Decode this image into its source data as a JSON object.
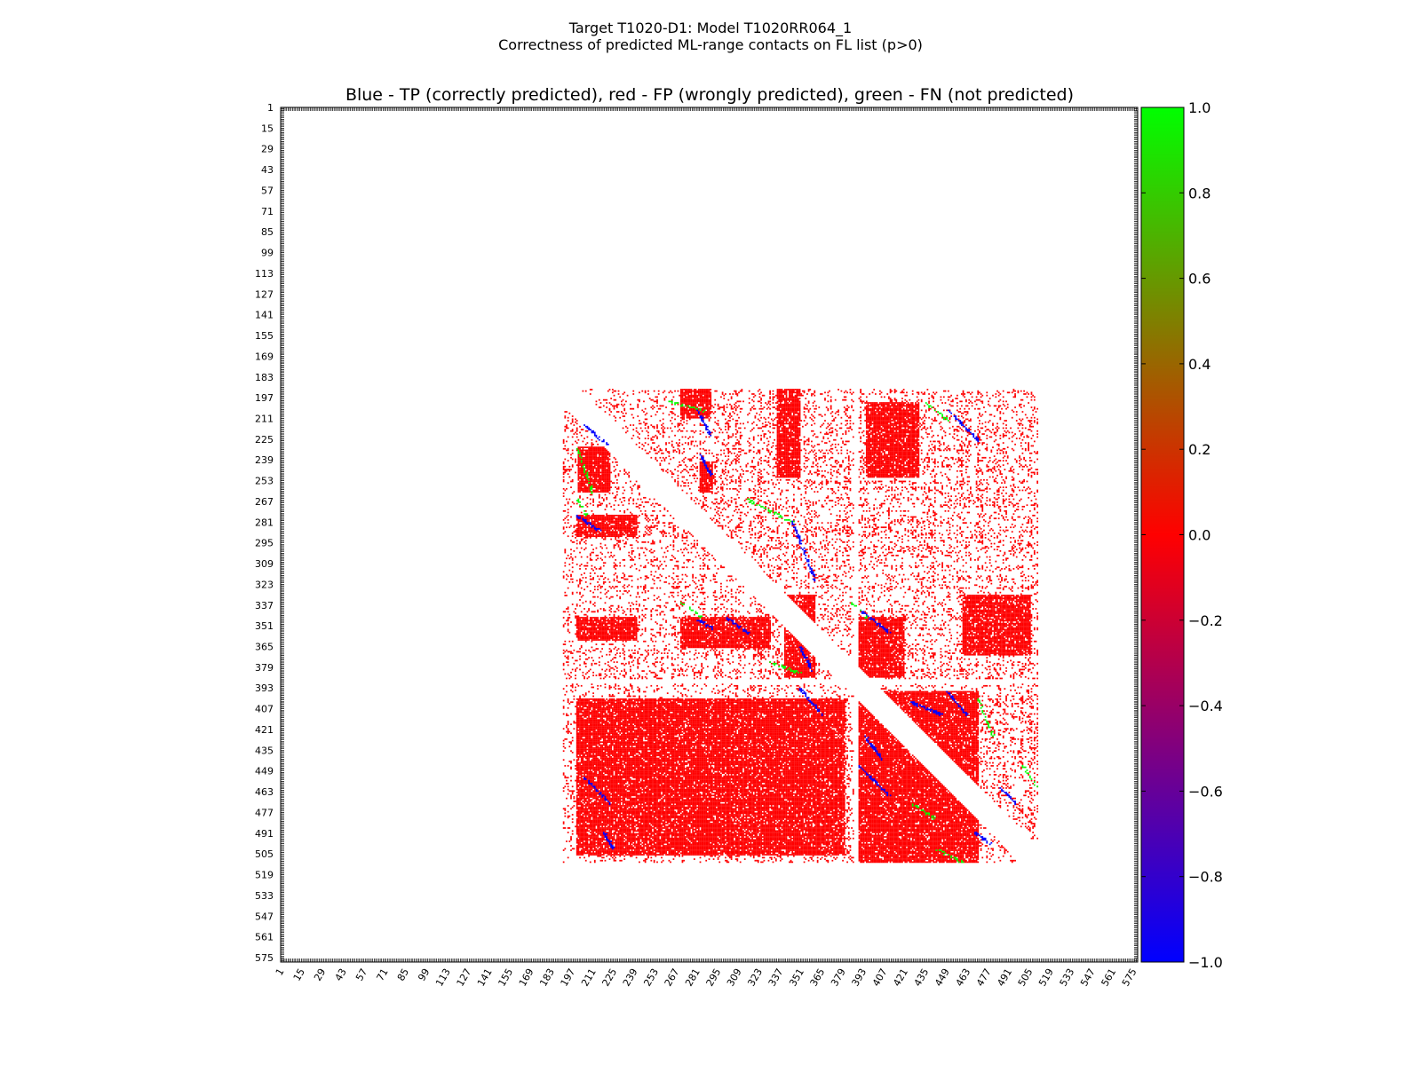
{
  "figure": {
    "suptitle_line1": "Target T1020-D1: Model T1020RR064_1",
    "suptitle_line2": "Correctness of predicted ML-range contacts on FL list (p>0)"
  },
  "chart_data": {
    "type": "heatmap",
    "title": "Blue - TP (correctly predicted), red - FP (wrongly predicted), green - FN (not predicted)",
    "xlabel": "",
    "ylabel": "",
    "x_range": [
      1,
      578
    ],
    "y_range": [
      1,
      578
    ],
    "y_inverted": true,
    "x_tick_labels": [
      "1",
      "15",
      "29",
      "43",
      "57",
      "71",
      "85",
      "99",
      "113",
      "127",
      "141",
      "155",
      "169",
      "183",
      "197",
      "211",
      "225",
      "239",
      "253",
      "267",
      "281",
      "295",
      "309",
      "323",
      "337",
      "351",
      "365",
      "379",
      "393",
      "407",
      "421",
      "435",
      "449",
      "463",
      "477",
      "491",
      "505",
      "519",
      "533",
      "547",
      "561",
      "575"
    ],
    "y_tick_labels": [
      "1",
      "15",
      "29",
      "43",
      "57",
      "71",
      "85",
      "99",
      "113",
      "127",
      "141",
      "155",
      "169",
      "183",
      "197",
      "211",
      "225",
      "239",
      "253",
      "267",
      "281",
      "295",
      "309",
      "323",
      "337",
      "351",
      "365",
      "379",
      "393",
      "407",
      "421",
      "435",
      "449",
      "463",
      "477",
      "491",
      "505",
      "519",
      "533",
      "547",
      "561",
      "575"
    ],
    "colorbar": {
      "range": [
        -1.0,
        1.0
      ],
      "tick_labels": [
        "1.0",
        "0.8",
        "0.6",
        "0.4",
        "0.2",
        "0.0",
        "−0.2",
        "−0.4",
        "−0.6",
        "−0.8",
        "−1.0"
      ],
      "colors": [
        "#0000ff",
        "#ff0000",
        "#00ff00"
      ]
    },
    "category_values": {
      "TP": -1.0,
      "FP": 0.0,
      "FN": 1.0
    },
    "category_colors": {
      "TP": "#0000ff",
      "FP": "#ff0000",
      "FN": "#00ff00"
    },
    "residue_domain": [
      191,
      510
    ],
    "gap_residues": [
      [
        387,
        389
      ]
    ],
    "dense_blocks": [
      {
        "x": [
          270,
          290
        ],
        "y": [
          191,
          210
        ]
      },
      {
        "x": [
          201,
          222
        ],
        "y": [
          230,
          260
        ]
      },
      {
        "x": [
          283,
          291
        ],
        "y": [
          240,
          260
        ]
      },
      {
        "x": [
          335,
          350
        ],
        "y": [
          191,
          250
        ]
      },
      {
        "x": [
          200,
          240
        ],
        "y": [
          276,
          290
        ]
      },
      {
        "x": [
          200,
          240
        ],
        "y": [
          345,
          360
        ]
      },
      {
        "x": [
          270,
          330
        ],
        "y": [
          345,
          365
        ]
      },
      {
        "x": [
          340,
          360
        ],
        "y": [
          330,
          385
        ]
      },
      {
        "x": [
          390,
          420
        ],
        "y": [
          345,
          385
        ]
      },
      {
        "x": [
          395,
          430
        ],
        "y": [
          200,
          250
        ]
      },
      {
        "x": [
          440,
          470
        ],
        "y": [
          400,
          430
        ]
      },
      {
        "x": [
          390,
          470
        ],
        "y": [
          395,
          510
        ]
      },
      {
        "x": [
          200,
          380
        ],
        "y": [
          400,
          505
        ]
      },
      {
        "x": [
          460,
          505
        ],
        "y": [
          330,
          370
        ]
      }
    ],
    "tp_segments": [
      {
        "x": [
          205,
          220
        ],
        "y": [
          215,
          228
        ]
      },
      {
        "x": [
          281,
          290
        ],
        "y": [
          205,
          222
        ]
      },
      {
        "x": [
          283,
          290
        ],
        "y": [
          235,
          248
        ]
      },
      {
        "x": [
          200,
          215
        ],
        "y": [
          276,
          286
        ]
      },
      {
        "x": [
          345,
          360
        ],
        "y": [
          280,
          320
        ]
      },
      {
        "x": [
          281,
          291
        ],
        "y": [
          346,
          352
        ]
      },
      {
        "x": [
          301,
          315
        ],
        "y": [
          345,
          355
        ]
      },
      {
        "x": [
          350,
          358
        ],
        "y": [
          365,
          380
        ]
      },
      {
        "x": [
          391,
          410
        ],
        "y": [
          340,
          355
        ]
      },
      {
        "x": [
          350,
          365
        ],
        "y": [
          393,
          410
        ]
      },
      {
        "x": [
          425,
          445
        ],
        "y": [
          402,
          410
        ]
      },
      {
        "x": [
          449,
          462
        ],
        "y": [
          395,
          410
        ]
      },
      {
        "x": [
          450,
          470
        ],
        "y": [
          205,
          225
        ]
      },
      {
        "x": [
          394,
          405
        ],
        "y": [
          425,
          440
        ]
      },
      {
        "x": [
          390,
          410
        ],
        "y": [
          445,
          465
        ]
      },
      {
        "x": [
          205,
          222
        ],
        "y": [
          453,
          470
        ]
      },
      {
        "x": [
          485,
          495
        ],
        "y": [
          460,
          470
        ]
      },
      {
        "x": [
          468,
          478
        ],
        "y": [
          490,
          497
        ]
      },
      {
        "x": [
          218,
          224
        ],
        "y": [
          490,
          500
        ]
      }
    ],
    "fn_segments": [
      {
        "x": [
          200,
          210
        ],
        "y": [
          230,
          260
        ]
      },
      {
        "x": [
          260,
          285
        ],
        "y": [
          198,
          205
        ]
      },
      {
        "x": [
          315,
          345
        ],
        "y": [
          265,
          280
        ]
      },
      {
        "x": [
          270,
          285
        ],
        "y": [
          335,
          345
        ]
      },
      {
        "x": [
          330,
          350
        ],
        "y": [
          375,
          382
        ]
      },
      {
        "x": [
          385,
          395
        ],
        "y": [
          335,
          345
        ]
      },
      {
        "x": [
          435,
          450
        ],
        "y": [
          200,
          212
        ]
      },
      {
        "x": [
          425,
          440
        ],
        "y": [
          470,
          480
        ]
      },
      {
        "x": [
          500,
          510
        ],
        "y": [
          445,
          460
        ]
      },
      {
        "x": [
          440,
          460
        ],
        "y": [
          500,
          510
        ]
      },
      {
        "x": [
          470,
          480
        ],
        "y": [
          400,
          425
        ]
      },
      {
        "x": [
          200,
          206
        ],
        "y": [
          265,
          275
        ]
      }
    ]
  }
}
